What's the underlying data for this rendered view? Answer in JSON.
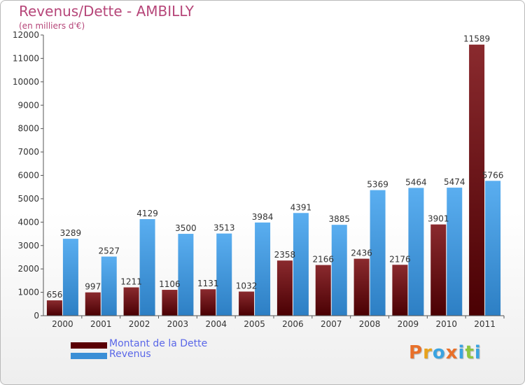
{
  "title": "Revenus/Dette - AMBILLY",
  "subtitle": "(en milliers d'€)",
  "legend": {
    "debt_label": "Montant de la Dette",
    "revenue_label": "Revenus"
  },
  "logo": {
    "text": "Proxiti",
    "colors": [
      "#e8702a",
      "#e8a21c",
      "#3aa3e0",
      "#e8702a",
      "#3aa3e0",
      "#8ec63f",
      "#3aa3e0"
    ]
  },
  "colors": {
    "debt": "#6b0d10",
    "revenue": "#3b8fd6"
  },
  "chart_data": {
    "type": "bar",
    "title": "Revenus/Dette - AMBILLY",
    "subtitle": "(en milliers d'€)",
    "categories": [
      "2000",
      "2001",
      "2002",
      "2003",
      "2004",
      "2005",
      "2006",
      "2007",
      "2008",
      "2009",
      "2010",
      "2011"
    ],
    "series": [
      {
        "name": "Montant de la Dette",
        "values": [
          656,
          997,
          1211,
          1106,
          1131,
          1032,
          2358,
          2166,
          2436,
          2176,
          3901,
          11589
        ],
        "labels": [
          "656",
          "997",
          "1211",
          "1106",
          "1131",
          "1032",
          "2358",
          "2166",
          "2436",
          "2176",
          "3901",
          "11589"
        ]
      },
      {
        "name": "Revenus",
        "values": [
          3289,
          2527,
          4129,
          3500,
          3513,
          3984,
          4391,
          3885,
          5369,
          5464,
          5474,
          5766
        ],
        "labels": [
          "3289",
          "2527",
          "4129",
          "3500",
          "3513",
          "3984",
          "4391",
          "3885",
          "5369",
          "5464",
          "5474",
          "5766"
        ]
      }
    ],
    "yticks": [
      "0",
      "1000",
      "2000",
      "3000",
      "4000",
      "5000",
      "6000",
      "7000",
      "8000",
      "9000",
      "10000",
      "11000",
      "12000"
    ],
    "ylim": [
      0,
      12000
    ],
    "grid": false,
    "legend_position": "bottom-left"
  }
}
